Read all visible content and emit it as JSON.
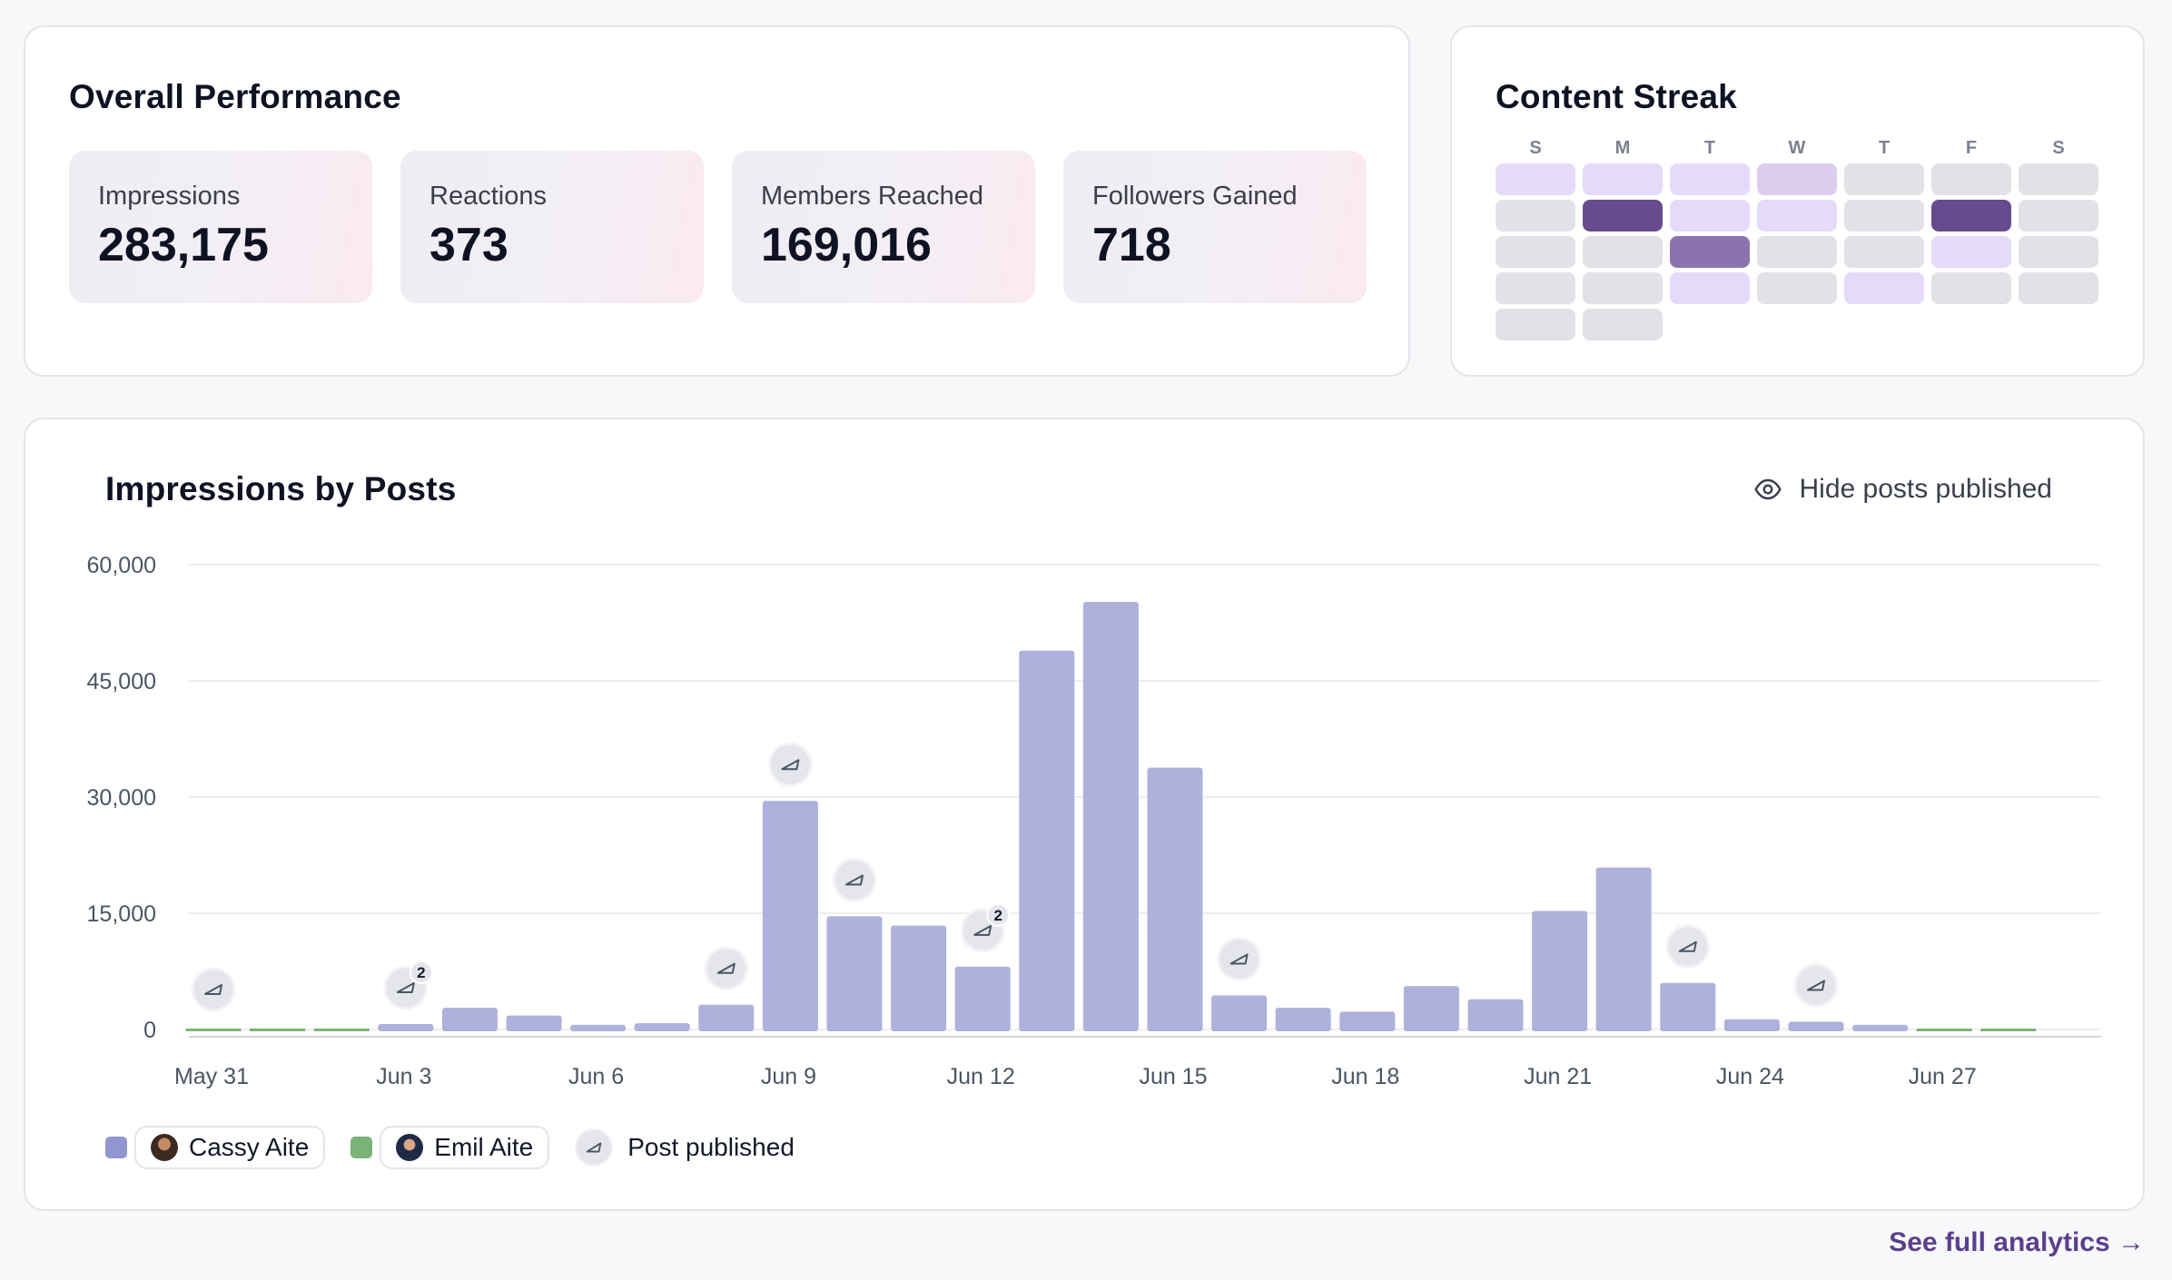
{
  "performance": {
    "title": "Overall Performance",
    "metrics": [
      {
        "label": "Impressions",
        "value": "283,175"
      },
      {
        "label": "Reactions",
        "value": "373"
      },
      {
        "label": "Members Reached",
        "value": "169,016"
      },
      {
        "label": "Followers Gained",
        "value": "718"
      }
    ]
  },
  "streak": {
    "title": "Content Streak",
    "days": [
      "S",
      "M",
      "T",
      "W",
      "T",
      "F",
      "S"
    ],
    "levels": [
      [
        1,
        1,
        1,
        2,
        0,
        0,
        0
      ],
      [
        0,
        4,
        1,
        1,
        0,
        4,
        0
      ],
      [
        0,
        0,
        3,
        0,
        0,
        1,
        0
      ],
      [
        0,
        0,
        1,
        0,
        1,
        0,
        0
      ],
      [
        0,
        0
      ]
    ],
    "colors": [
      "#e1e2e7",
      "#e6dafa",
      "#dccdef",
      "#8b74ad",
      "#664c8f"
    ]
  },
  "impressions": {
    "title": "Impressions by Posts",
    "hide_label": "Hide posts published",
    "legend": {
      "series_a": "Cassy Aite",
      "series_b": "Emil Aite",
      "post": "Post published"
    },
    "see_full": "See full analytics →"
  },
  "chart_data": {
    "type": "bar",
    "title": "Impressions by Posts",
    "xlabel": "",
    "ylabel": "",
    "ylim": [
      0,
      60000
    ],
    "yticks": [
      0,
      15000,
      30000,
      45000,
      60000
    ],
    "ytick_labels": [
      "0",
      "15,000",
      "30,000",
      "45,000",
      "60,000"
    ],
    "categories": [
      "May 31",
      "Jun 1",
      "Jun 2",
      "Jun 3",
      "Jun 4",
      "Jun 5",
      "Jun 6",
      "Jun 7",
      "Jun 8",
      "Jun 9",
      "Jun 10",
      "Jun 11",
      "Jun 12",
      "Jun 13",
      "Jun 14",
      "Jun 15",
      "Jun 16",
      "Jun 17",
      "Jun 18",
      "Jun 19",
      "Jun 20",
      "Jun 21",
      "Jun 22",
      "Jun 23",
      "Jun 24",
      "Jun 25",
      "Jun 26",
      "Jun 27",
      "Jun 28",
      "Jun 29"
    ],
    "xtick_labels": [
      "May 31",
      "Jun 3",
      "Jun 6",
      "Jun 9",
      "Jun 12",
      "Jun 15",
      "Jun 18",
      "Jun 21",
      "Jun 24",
      "Jun 27"
    ],
    "series": [
      {
        "name": "Cassy Aite",
        "color": "#aeb1dc",
        "values": [
          0,
          0,
          0,
          700,
          2800,
          1800,
          600,
          800,
          3200,
          29500,
          14600,
          13400,
          8100,
          48900,
          55200,
          33800,
          4400,
          2800,
          2300,
          5600,
          3900,
          15300,
          20900,
          6000,
          1300,
          1000,
          600,
          0,
          0,
          0
        ]
      },
      {
        "name": "Emil Aite",
        "color": "#7bb276",
        "values": [
          200,
          200,
          150,
          0,
          0,
          0,
          0,
          0,
          0,
          0,
          0,
          0,
          0,
          0,
          0,
          0,
          0,
          0,
          0,
          0,
          0,
          0,
          0,
          0,
          0,
          0,
          0,
          150,
          150,
          0
        ]
      }
    ],
    "posts": [
      {
        "index": 0,
        "count": 1
      },
      {
        "index": 3,
        "count": 2
      },
      {
        "index": 8,
        "count": 1
      },
      {
        "index": 9,
        "count": 1
      },
      {
        "index": 10,
        "count": 1
      },
      {
        "index": 12,
        "count": 2
      },
      {
        "index": 16,
        "count": 1
      },
      {
        "index": 23,
        "count": 1
      },
      {
        "index": 25,
        "count": 1
      }
    ],
    "grid": true
  }
}
